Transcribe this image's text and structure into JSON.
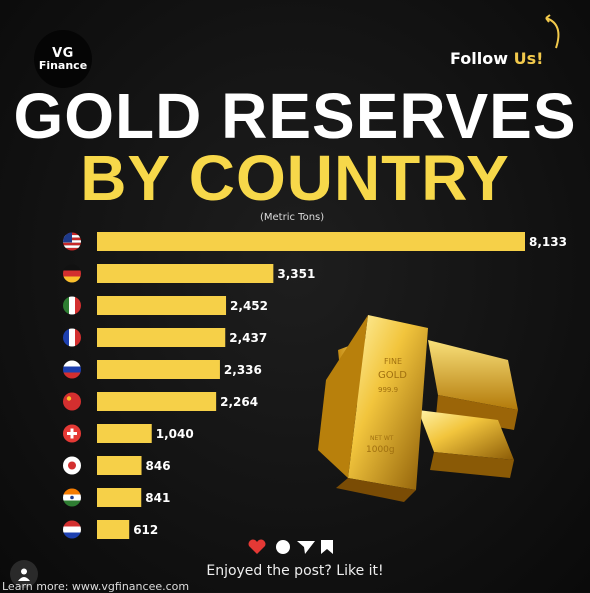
{
  "brand": {
    "line1": "VG",
    "line2": "Finance"
  },
  "follow": {
    "prefix": "Follow ",
    "highlight": "Us!"
  },
  "title": {
    "line1": "GOLD RESERVES",
    "line2": "BY COUNTRY"
  },
  "colors": {
    "gold": "#f7d84a",
    "bar": "#f6d048",
    "background": "#121212"
  },
  "chart_data": {
    "type": "bar",
    "orientation": "horizontal",
    "subtitle": "(Metric Tons)",
    "categories": [
      "United States",
      "Germany",
      "Italy",
      "France",
      "Russia",
      "China",
      "Switzerland",
      "Japan",
      "India",
      "Netherlands"
    ],
    "flags": [
      "us-flag",
      "germany-flag",
      "italy-flag",
      "france-flag",
      "russia-flag",
      "china-flag",
      "switzerland-flag",
      "japan-flag",
      "india-flag",
      "netherlands-flag"
    ],
    "values": [
      8133,
      3351,
      2452,
      2437,
      2336,
      2264,
      1040,
      846,
      841,
      612
    ],
    "value_labels": [
      "8,133",
      "3,351",
      "2,452",
      "2,437",
      "2,336",
      "2,264",
      "1,040",
      "846",
      "841",
      "612"
    ],
    "xlim": [
      0,
      8133
    ],
    "grid": false
  },
  "bars_image": {
    "stamp_line1": "FINE",
    "stamp_line2": "GOLD",
    "stamp_line3": "999.9",
    "stamp_line4": "NET WT",
    "stamp_line5": "1000g"
  },
  "footer": {
    "enjoy": "Enjoyed the post? Like it!",
    "learn_more": "Learn more: www.vgfinancee.com",
    "icons": [
      "heart-icon",
      "comment-icon",
      "share-icon",
      "bookmark-icon"
    ]
  }
}
